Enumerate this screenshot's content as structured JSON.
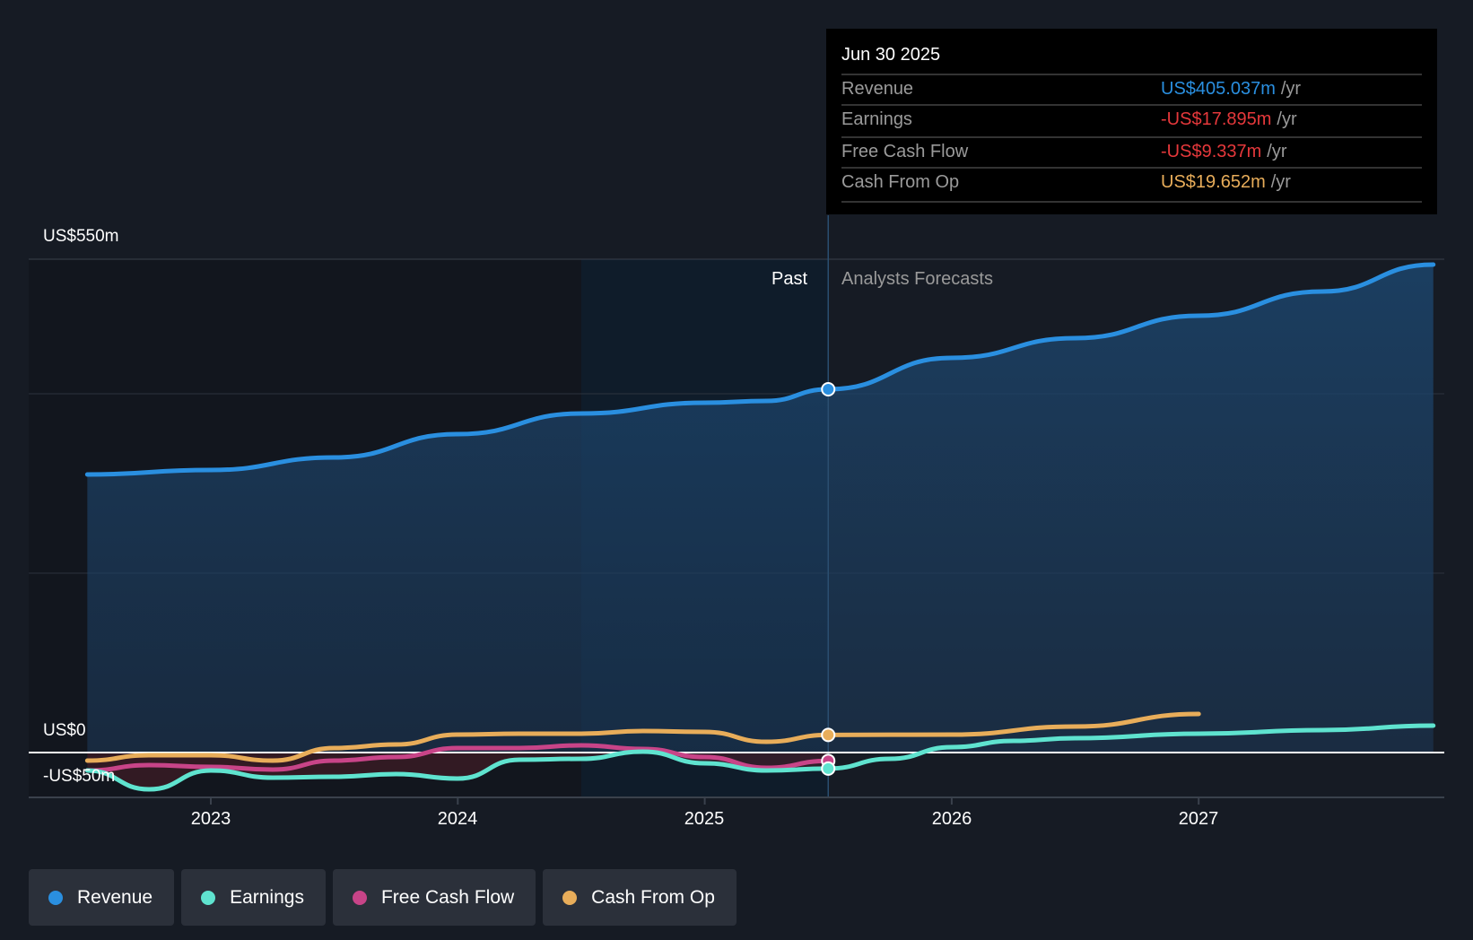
{
  "chart_data": {
    "type": "line",
    "title": "",
    "y_axis": {
      "labels": [
        "US$550m",
        "US$0",
        "-US$50m"
      ],
      "ylim": [
        -50,
        550
      ],
      "gridlines": [
        0,
        200,
        400,
        550
      ]
    },
    "x_axis": {
      "ticks": [
        "2023",
        "2024",
        "2025",
        "2026",
        "2027"
      ],
      "xlim": [
        2022.27,
        2027.95
      ]
    },
    "zones": {
      "past_label": "Past",
      "forecast_label": "Analysts Forecasts",
      "divider": 2025.5,
      "highlight_start": 2024.5
    },
    "series": [
      {
        "name": "Revenue",
        "color": "#2a8fe0",
        "x": [
          2022.5,
          2023,
          2023.5,
          2024,
          2024.5,
          2025,
          2025.25,
          2025.5,
          2026,
          2026.5,
          2027,
          2027.5,
          2027.95
        ],
        "values": [
          310,
          315,
          329,
          355,
          378,
          390,
          392,
          405,
          440,
          462,
          487,
          514,
          544
        ]
      },
      {
        "name": "Earnings",
        "color": "#5fe3cf",
        "x": [
          2022.5,
          2022.75,
          2023,
          2023.25,
          2023.5,
          2023.75,
          2024,
          2024.25,
          2024.5,
          2024.75,
          2025,
          2025.25,
          2025.5,
          2025.75,
          2026,
          2026.25,
          2026.5,
          2027,
          2027.5,
          2027.95
        ],
        "values": [
          -20,
          -41,
          -20,
          -28,
          -27,
          -24,
          -29,
          -8,
          -7,
          1,
          -12,
          -20,
          -17.895,
          -7,
          6,
          13,
          16,
          21,
          25,
          30
        ]
      },
      {
        "name": "Free Cash Flow",
        "color": "#c84488",
        "x": [
          2022.5,
          2022.75,
          2023,
          2023.25,
          2023.5,
          2023.75,
          2024,
          2024.25,
          2024.5,
          2024.75,
          2025,
          2025.25,
          2025.5
        ],
        "values": [
          -20,
          -14,
          -16,
          -19,
          -9,
          -5,
          5,
          5,
          8,
          4,
          -5,
          -17,
          -9.337
        ]
      },
      {
        "name": "Cash From Op",
        "color": "#e8ad5a",
        "x": [
          2022.5,
          2022.75,
          2023,
          2023.25,
          2023.5,
          2023.75,
          2024,
          2024.25,
          2024.5,
          2024.75,
          2025,
          2025.25,
          2025.5,
          2026,
          2026.5,
          2027
        ],
        "values": [
          -9,
          -3,
          -3,
          -9,
          5,
          9,
          20,
          21,
          21,
          24,
          23,
          12,
          19.652,
          20,
          29,
          43
        ]
      }
    ]
  },
  "tooltip": {
    "date": "Jun 30 2025",
    "rows": [
      {
        "label": "Revenue",
        "value": "US$405.037m",
        "unit": "/yr",
        "color": "#2a8fe0"
      },
      {
        "label": "Earnings",
        "value": "-US$17.895m",
        "unit": "/yr",
        "color": "#e5383b"
      },
      {
        "label": "Free Cash Flow",
        "value": "-US$9.337m",
        "unit": "/yr",
        "color": "#e5383b"
      },
      {
        "label": "Cash From Op",
        "value": "US$19.652m",
        "unit": "/yr",
        "color": "#e8ad5a"
      }
    ]
  },
  "legend": [
    {
      "label": "Revenue",
      "color": "#2a8fe0"
    },
    {
      "label": "Earnings",
      "color": "#5fe3cf"
    },
    {
      "label": "Free Cash Flow",
      "color": "#c84488"
    },
    {
      "label": "Cash From Op",
      "color": "#e8ad5a"
    }
  ]
}
